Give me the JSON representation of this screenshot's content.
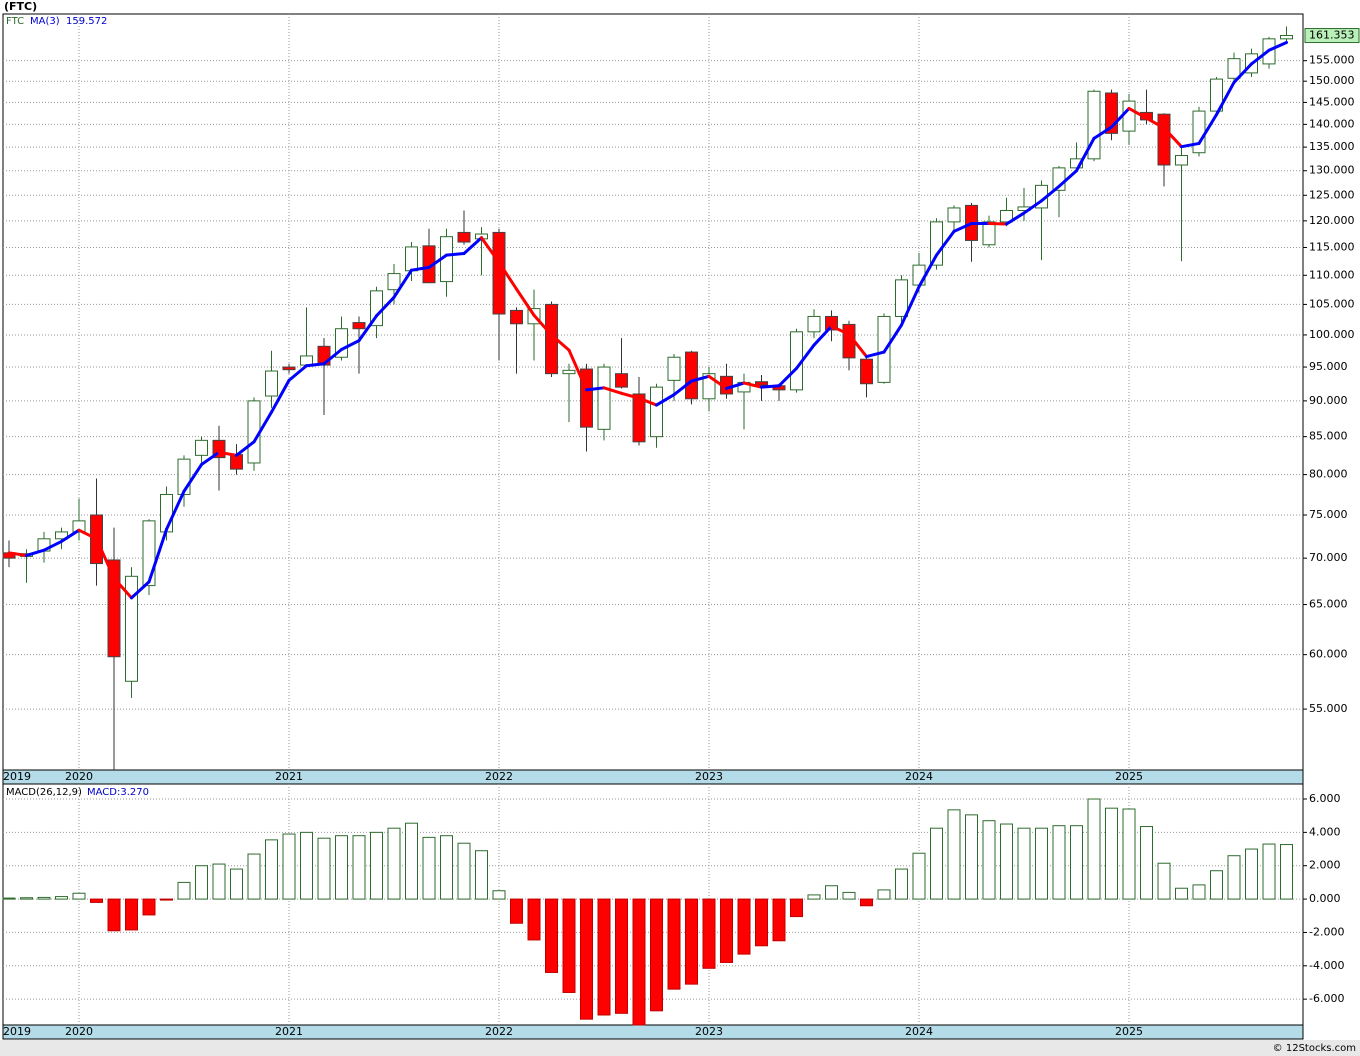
{
  "chart_data": [
    {
      "type": "candlestick",
      "title": "(FTC)",
      "symbol": "FTC",
      "categories": [
        "2019",
        null,
        null,
        null,
        "2020",
        null,
        null,
        null,
        null,
        null,
        null,
        null,
        null,
        null,
        null,
        null,
        "2021",
        null,
        null,
        null,
        null,
        null,
        null,
        null,
        null,
        null,
        null,
        null,
        "2022",
        null,
        null,
        null,
        null,
        null,
        null,
        null,
        null,
        null,
        null,
        null,
        "2023",
        null,
        null,
        null,
        null,
        null,
        null,
        null,
        null,
        null,
        null,
        null,
        "2024",
        null,
        null,
        null,
        null,
        null,
        null,
        null,
        null,
        null,
        null,
        null,
        "2025",
        null,
        null,
        null,
        null,
        null,
        null,
        null,
        null,
        null
      ],
      "open": [
        70.6,
        70.2,
        70.8,
        72.2,
        73,
        75,
        69.8,
        57.5,
        67,
        73,
        77.5,
        82.5,
        84.5,
        82.6,
        81.5,
        90.7,
        95,
        95.3,
        98.2,
        96.5,
        102,
        101.5,
        107.5,
        110.8,
        115.3,
        108.9,
        117.8,
        116.6,
        117.8,
        104,
        101.8,
        105,
        94,
        94.7,
        86,
        94,
        91,
        85,
        93,
        97.3,
        90.3,
        93.6,
        91.3,
        92.8,
        92.2,
        91.6,
        100.5,
        103,
        101.7,
        96.2,
        92.7,
        103,
        108.3,
        111.8,
        119.8,
        123,
        115.5,
        119.8,
        122,
        122.5,
        126,
        130.6,
        132.5,
        147.2,
        138.5,
        142.7,
        142.3,
        131.2,
        133.8,
        143,
        150.7,
        152,
        154.2,
        160.5
      ],
      "high": [
        72,
        71,
        73,
        73.5,
        77,
        79.5,
        73.5,
        69,
        74.5,
        78.5,
        82.5,
        85,
        86.5,
        84,
        90.5,
        97.5,
        95.5,
        104.5,
        99.5,
        103,
        103,
        108,
        112,
        116,
        118.5,
        118.5,
        122,
        118.8,
        118.5,
        104.5,
        107.5,
        105.5,
        95.5,
        95.5,
        95.5,
        99.5,
        93.5,
        92.5,
        97,
        97.5,
        95,
        95.5,
        94,
        93.8,
        92.5,
        101,
        104.2,
        104,
        102.3,
        96.5,
        103.5,
        110,
        114,
        120.5,
        123,
        123.5,
        121,
        124.5,
        126.5,
        128,
        131,
        136,
        148,
        148,
        147,
        148,
        142.5,
        135,
        144,
        151,
        157,
        158,
        161,
        163.7
      ],
      "low": [
        69,
        67.3,
        69.5,
        71,
        72,
        67,
        49.9,
        56,
        66,
        72,
        76,
        81,
        78,
        80,
        80.5,
        89,
        94,
        95,
        88,
        96,
        94,
        99.5,
        105,
        109,
        108.7,
        106.3,
        115.5,
        110,
        96,
        94,
        96,
        93.5,
        87,
        83,
        84.5,
        91.8,
        83.8,
        83.5,
        90,
        89.5,
        88.5,
        90.3,
        86,
        90,
        90,
        91.2,
        99.5,
        99,
        94.5,
        90.5,
        92.5,
        102,
        107,
        111,
        118,
        112.4,
        115,
        119,
        120,
        112.7,
        120.7,
        130,
        132,
        136.5,
        135.5,
        140,
        126.8,
        112.5,
        133,
        142,
        150,
        151,
        153,
        159.8
      ],
      "close": [
        70,
        70.5,
        72.2,
        73,
        74.3,
        69.4,
        59.8,
        68,
        74.3,
        77.5,
        82,
        84.5,
        82.2,
        80.7,
        90,
        94.4,
        94.6,
        96.7,
        95.3,
        101,
        101,
        107.3,
        110.3,
        115.1,
        108.7,
        117,
        116,
        117.5,
        103.4,
        101.8,
        104.3,
        94,
        94.5,
        86.3,
        95,
        92,
        84.3,
        92,
        96.5,
        90.3,
        94,
        91,
        92.7,
        92.3,
        91.6,
        100.5,
        103,
        100.8,
        96.4,
        92.5,
        103,
        109.2,
        111.8,
        119.8,
        122.5,
        116.3,
        119.8,
        122,
        122.7,
        127,
        130.6,
        132.5,
        147.6,
        138,
        145.3,
        141,
        131.2,
        133.2,
        143,
        150.5,
        155.5,
        156.7,
        160.5,
        161.353
      ],
      "up_color": "#2e6b2e",
      "down_color": "#ff0000",
      "ma": {
        "name": "MA(3)",
        "up_color": "#0000ff",
        "down_color": "#ff0000",
        "values": [
          70.6,
          70.3,
          70.9,
          71.9,
          73.2,
          72.2,
          67.8,
          65.7,
          67.4,
          73.3,
          77.9,
          81.3,
          82.9,
          82.5,
          84.3,
          88.4,
          93,
          95.2,
          95.5,
          97.7,
          99.1,
          103.1,
          106.2,
          110.9,
          111.4,
          113.6,
          113.9,
          116.8,
          112.3,
          107.6,
          103.2,
          100,
          97.6,
          91.6,
          91.9,
          91.1,
          90.4,
          89.4,
          90.9,
          92.9,
          93.6,
          91.8,
          92.6,
          92,
          92.2,
          94.8,
          98.4,
          101.4,
          100.1,
          96.6,
          97.3,
          101.6,
          108,
          113.6,
          118,
          119.5,
          119.5,
          119.4,
          121.5,
          123.9,
          126.8,
          130,
          136.9,
          139.4,
          143.6,
          141.4,
          139.2,
          135.1,
          135.8,
          142.2,
          149.7,
          154.2,
          157.6,
          159.572
        ]
      },
      "yscale": "log",
      "ylim": [
        49.9,
        167
      ],
      "yticks": [
        {
          "value": 55,
          "label": "55.000"
        },
        {
          "value": 60,
          "label": "60.000"
        },
        {
          "value": 65,
          "label": "65.000"
        },
        {
          "value": 70,
          "label": "70.000"
        },
        {
          "value": 75,
          "label": "75.000"
        },
        {
          "value": 80,
          "label": "80.000"
        },
        {
          "value": 85,
          "label": "85.000"
        },
        {
          "value": 90,
          "label": "90.000"
        },
        {
          "value": 95,
          "label": "95.000"
        },
        {
          "value": 100,
          "label": "100.000"
        },
        {
          "value": 105,
          "label": "105.000"
        },
        {
          "value": 110,
          "label": "110.000"
        },
        {
          "value": 115,
          "label": "115.000"
        },
        {
          "value": 120,
          "label": "120.000"
        },
        {
          "value": 125,
          "label": "125.000"
        },
        {
          "value": 130,
          "label": "130.000"
        },
        {
          "value": 135,
          "label": "135.000"
        },
        {
          "value": 140,
          "label": "140.000"
        },
        {
          "value": 145,
          "label": "145.000"
        },
        {
          "value": 150,
          "label": "150.000"
        },
        {
          "value": 155,
          "label": "155.000"
        }
      ],
      "grid": true
    },
    {
      "type": "bar",
      "title": "MACD(26,12,9)",
      "readout": "MACD:3.270",
      "categories": [
        "2019",
        null,
        null,
        null,
        "2020",
        null,
        null,
        null,
        null,
        null,
        null,
        null,
        null,
        null,
        null,
        null,
        "2021",
        null,
        null,
        null,
        null,
        null,
        null,
        null,
        null,
        null,
        null,
        null,
        "2022",
        null,
        null,
        null,
        null,
        null,
        null,
        null,
        null,
        null,
        null,
        null,
        "2023",
        null,
        null,
        null,
        null,
        null,
        null,
        null,
        null,
        null,
        null,
        null,
        "2024",
        null,
        null,
        null,
        null,
        null,
        null,
        null,
        null,
        null,
        null,
        null,
        "2025",
        null,
        null,
        null,
        null,
        null,
        null,
        null,
        null,
        null
      ],
      "values": [
        0.06,
        0.08,
        0.1,
        0.15,
        0.35,
        -0.2,
        -1.9,
        -1.85,
        -0.95,
        -0.05,
        1.0,
        2.0,
        2.1,
        1.8,
        2.7,
        3.55,
        3.9,
        4.0,
        3.65,
        3.8,
        3.8,
        4.0,
        4.25,
        4.55,
        3.7,
        3.8,
        3.35,
        2.9,
        0.5,
        -1.45,
        -2.45,
        -4.4,
        -5.6,
        -7.2,
        -6.95,
        -6.85,
        -7.55,
        -6.7,
        -5.4,
        -5.1,
        -4.15,
        -3.8,
        -3.3,
        -2.8,
        -2.5,
        -1.05,
        0.25,
        0.8,
        0.4,
        -0.4,
        0.55,
        1.8,
        2.75,
        4.25,
        5.35,
        5.05,
        4.7,
        4.5,
        4.25,
        4.25,
        4.4,
        4.4,
        6.0,
        5.45,
        5.4,
        4.35,
        2.15,
        0.65,
        0.85,
        1.7,
        2.6,
        3.0,
        3.3,
        3.27
      ],
      "pos_color": "#2e6b2e",
      "neg_color": "#ff0000",
      "ylim": [
        -7.55,
        6.9
      ],
      "yticks": [
        {
          "value": -6,
          "label": "-6.000"
        },
        {
          "value": -4,
          "label": "-4.000"
        },
        {
          "value": -2,
          "label": "-2.000"
        },
        {
          "value": 0,
          "label": "0.000"
        },
        {
          "value": 2,
          "label": "2.000"
        },
        {
          "value": 4,
          "label": "4.000"
        },
        {
          "value": 6,
          "label": "6.000"
        }
      ],
      "grid": true
    }
  ],
  "footer": "© 12Stocks.com"
}
